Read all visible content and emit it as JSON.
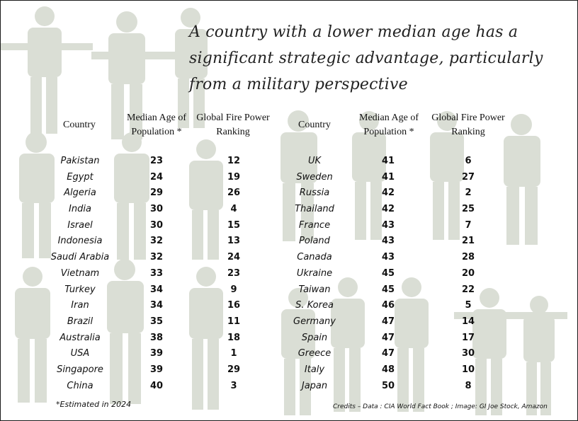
{
  "title": "A country with a lower median age has a significant strategic advantage, particularly from a military perspective",
  "left_table": {
    "header_country": "Country",
    "header_age": "Median Age of Population *",
    "header_rank": "Global Fire Power Ranking",
    "countries": [
      "Pakistan",
      "Egypt",
      "Algeria",
      "India",
      "Israel",
      "Indonesia",
      "Saudi Arabia",
      "Vietnam",
      "Turkey",
      "Iran",
      "Brazil",
      "Australia",
      "USA",
      "Singapore",
      "China"
    ],
    "ages": [
      "23",
      "24",
      "29",
      "30",
      "30",
      "32",
      "32",
      "33",
      "34",
      "34",
      "35",
      "38",
      "39",
      "39",
      "40"
    ],
    "ranks": [
      "12",
      "19",
      "26",
      "4",
      "15",
      "13",
      "24",
      "23",
      "9",
      "16",
      "11",
      "18",
      "1",
      "29",
      "3"
    ]
  },
  "right_table": {
    "header_country": "Country",
    "header_age": "Median Age of Population *",
    "header_rank": "Global Fire Power Ranking",
    "countries": [
      "UK",
      "Sweden",
      "Russia",
      "Thailand",
      "France",
      "Poland",
      "Canada",
      "Ukraine",
      "Taiwan",
      "S. Korea",
      "Germany",
      "Spain",
      "Greece",
      "Italy",
      "Japan"
    ],
    "ages": [
      "41",
      "41",
      "42",
      "42",
      "43",
      "43",
      "43",
      "45",
      "45",
      "46",
      "47",
      "47",
      "47",
      "48",
      "50"
    ],
    "ranks": [
      "6",
      "27",
      "2",
      "25",
      "7",
      "21",
      "28",
      "20",
      "22",
      "5",
      "14",
      "17",
      "30",
      "10",
      "8"
    ]
  },
  "footnote": "*Estimated in 2024",
  "credits": "Credits – Data : CIA  World Fact Book ;  Image: GI Joe Stock, Amazon"
}
